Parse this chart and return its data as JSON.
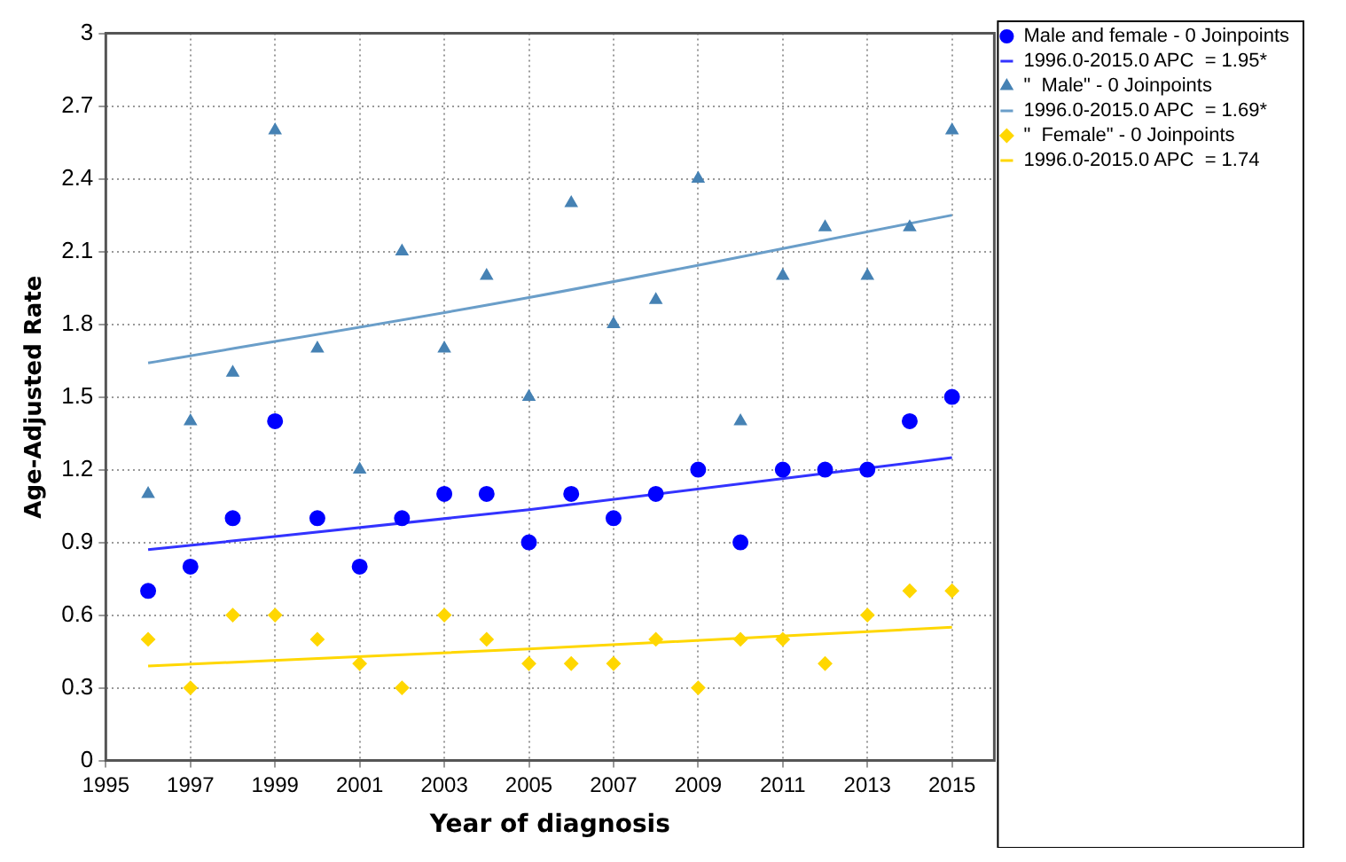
{
  "chart_data": {
    "type": "scatter",
    "xlabel": "Year of diagnosis",
    "ylabel": "Age-Adjusted Rate",
    "x": [
      1996,
      1997,
      1998,
      1999,
      2000,
      2001,
      2002,
      2003,
      2004,
      2005,
      2006,
      2007,
      2008,
      2009,
      2010,
      2011,
      2012,
      2013,
      2014,
      2015
    ],
    "series": [
      {
        "name": "Male and female - 0 Joinpoints",
        "marker": "circle",
        "color": "#0000ff",
        "values": [
          0.7,
          0.8,
          1.0,
          1.4,
          1.0,
          0.8,
          1.0,
          1.1,
          1.1,
          0.9,
          1.1,
          1.0,
          1.1,
          1.2,
          0.9,
          1.2,
          1.2,
          1.2,
          1.4,
          1.5
        ]
      },
      {
        "name": "1996.0-2015.0 APC  = 1.95*",
        "type": "line",
        "marker": "none",
        "color": "#3333ff",
        "x": [
          1996,
          2005,
          2015
        ],
        "values": [
          0.87,
          1.035,
          1.25
        ]
      },
      {
        "name": "\"  Male\" - 0 Joinpoints",
        "marker": "triangle",
        "color": "#4682b4",
        "values": [
          1.1,
          1.4,
          1.6,
          2.6,
          1.7,
          1.2,
          2.1,
          1.7,
          2.0,
          1.5,
          2.3,
          1.8,
          1.9,
          2.4,
          1.4,
          2.0,
          2.2,
          2.0,
          2.2,
          2.6
        ]
      },
      {
        "name": "1996.0-2015.0 APC  = 1.69*",
        "type": "line",
        "marker": "none",
        "color": "#6a9ec9",
        "x": [
          1996,
          2005,
          2015
        ],
        "values": [
          1.64,
          1.91,
          2.25
        ]
      },
      {
        "name": "\"  Female\" - 0 Joinpoints",
        "marker": "diamond",
        "color": "#ffd700",
        "values": [
          0.5,
          0.3,
          0.6,
          0.6,
          0.5,
          0.4,
          0.3,
          0.6,
          0.5,
          0.4,
          0.4,
          0.4,
          0.5,
          0.3,
          0.5,
          0.5,
          0.4,
          0.6,
          0.7,
          0.7
        ]
      },
      {
        "name": "1996.0-2015.0 APC  = 1.74",
        "type": "line",
        "marker": "none",
        "color": "#ffd700",
        "x": [
          1996,
          2005,
          2015
        ],
        "values": [
          0.39,
          0.46,
          0.55
        ]
      }
    ],
    "xlim": [
      1995,
      2016
    ],
    "xticks": [
      1995,
      1997,
      1999,
      2001,
      2003,
      2005,
      2007,
      2009,
      2011,
      2013,
      2015
    ],
    "ylim": [
      0,
      3
    ],
    "yticks": [
      0,
      0.3,
      0.6,
      0.9,
      1.2,
      1.5,
      1.8,
      2.1,
      2.4,
      2.7,
      3
    ],
    "grid": true,
    "legend": "top right"
  }
}
